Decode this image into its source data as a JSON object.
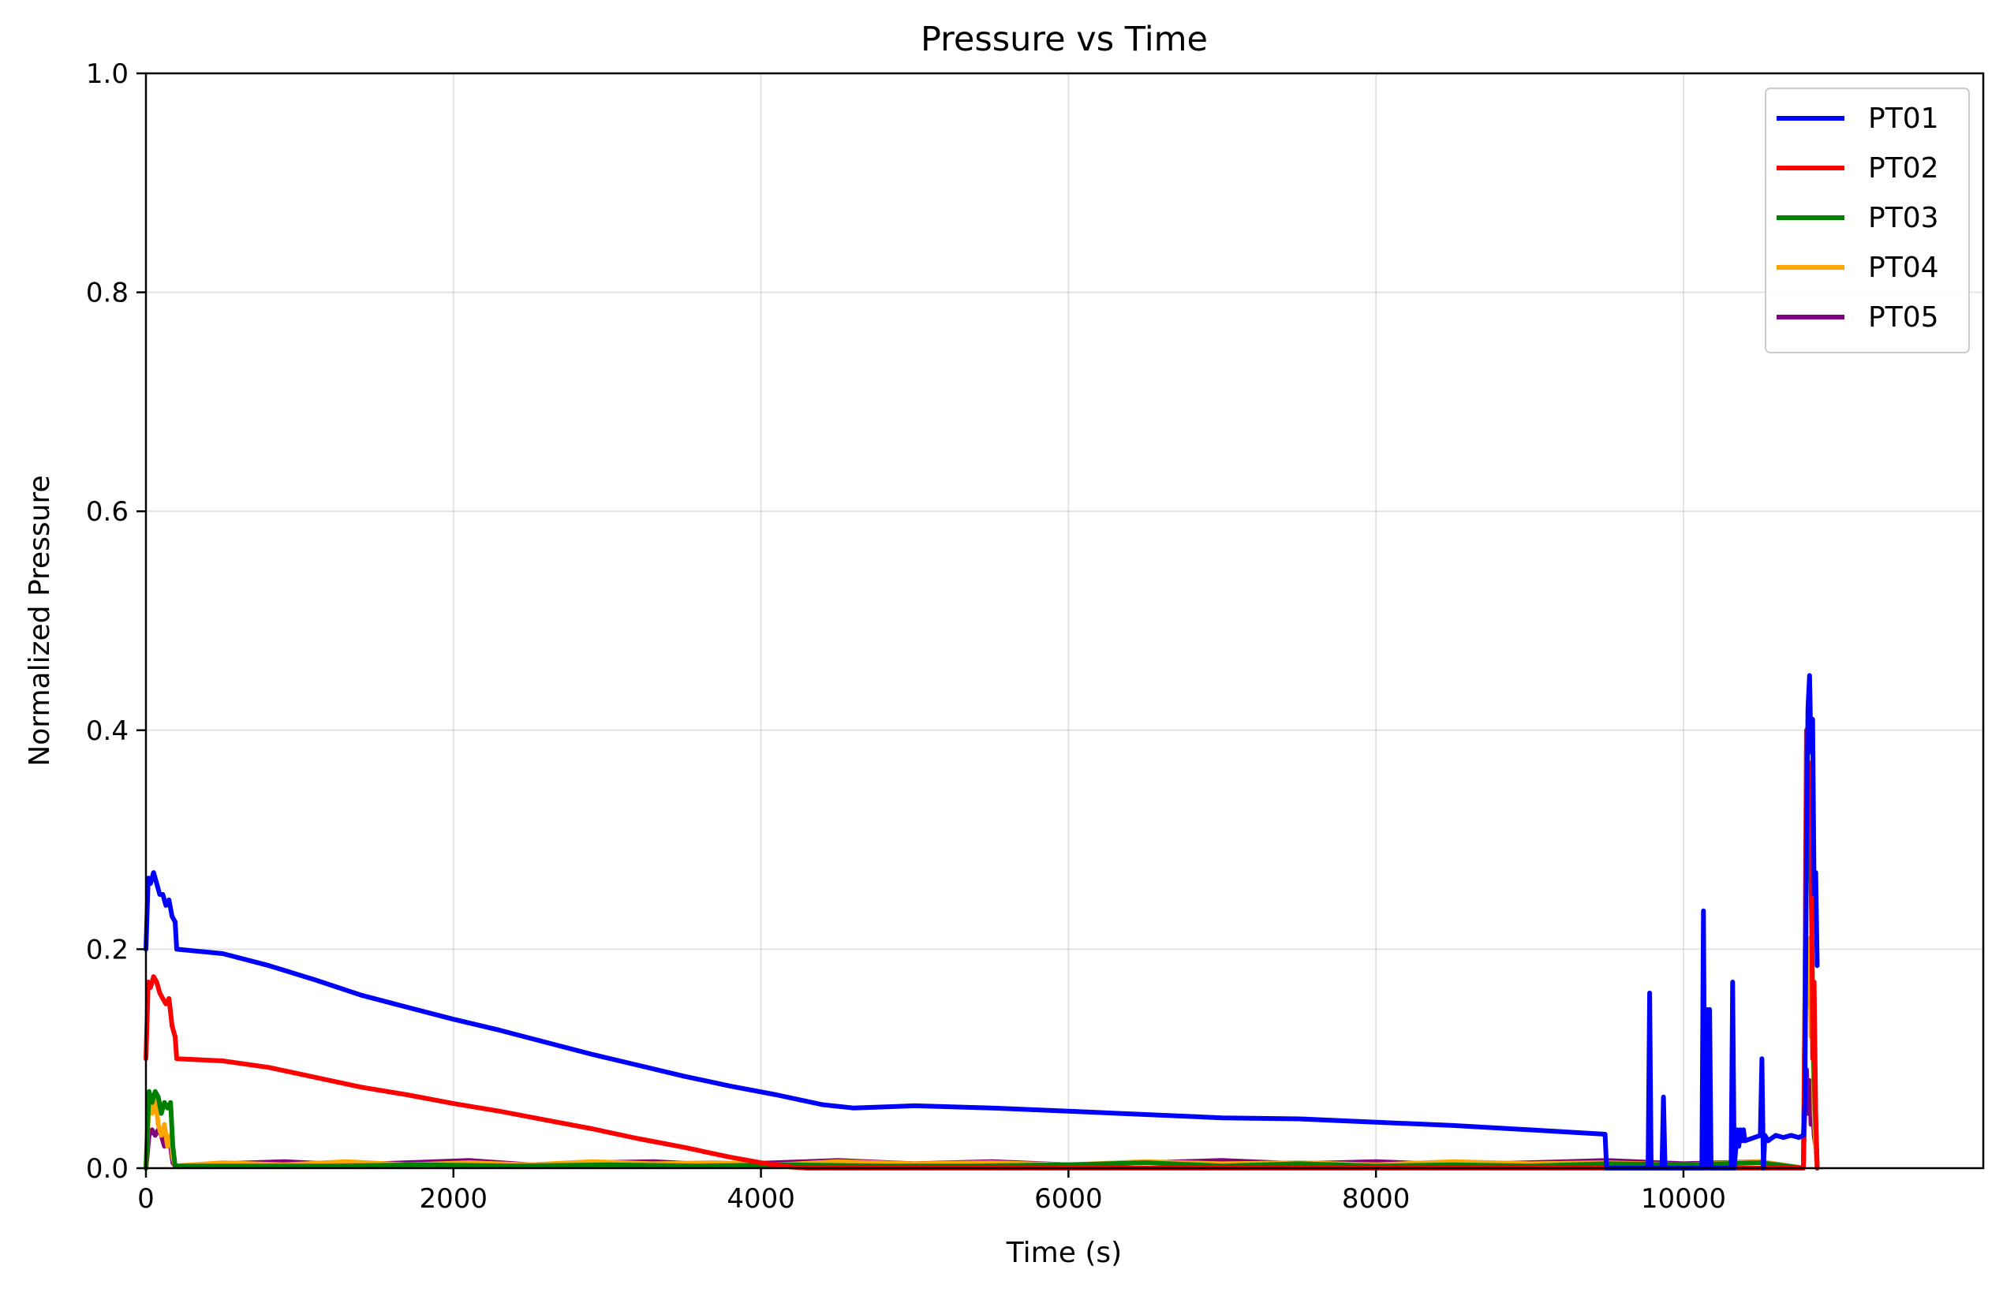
{
  "chart_data": {
    "type": "line",
    "title": "Pressure vs Time",
    "xlabel": "Time (s)",
    "ylabel": "Normalized Pressure",
    "xlim": [
      0,
      11950
    ],
    "ylim": [
      0,
      1.0
    ],
    "xticks": [
      0,
      2000,
      4000,
      6000,
      8000,
      10000
    ],
    "yticks": [
      0.0,
      0.2,
      0.4,
      0.6,
      0.8,
      1.0
    ],
    "xtick_labels": [
      "0",
      "2000",
      "4000",
      "6000",
      "8000",
      "10000"
    ],
    "ytick_labels": [
      "0.0",
      "0.2",
      "0.4",
      "0.6",
      "0.8",
      "1.0"
    ],
    "grid": true,
    "legend_position": "top-right",
    "series": [
      {
        "name": "PT01",
        "color": "#0000ff",
        "x": [
          0,
          15,
          30,
          50,
          70,
          90,
          110,
          130,
          150,
          170,
          190,
          200,
          500,
          800,
          1100,
          1400,
          1700,
          2000,
          2300,
          2600,
          2900,
          3200,
          3500,
          3800,
          4100,
          4400,
          4600,
          5000,
          5500,
          6000,
          6500,
          7000,
          7500,
          8000,
          8500,
          9000,
          9490,
          9500,
          9770,
          9780,
          9790,
          9800,
          9860,
          9870,
          9880,
          10120,
          10130,
          10140,
          10150,
          10160,
          10170,
          10180,
          10190,
          10200,
          10310,
          10320,
          10330,
          10350,
          10360,
          10370,
          10380,
          10390,
          10400,
          10500,
          10510,
          10520,
          10530,
          10550,
          10600,
          10650,
          10700,
          10750,
          10780,
          10790,
          10800,
          10810,
          10820,
          10830,
          10840,
          10850,
          10860,
          10870
        ],
        "y": [
          0.2,
          0.265,
          0.26,
          0.27,
          0.26,
          0.25,
          0.25,
          0.24,
          0.245,
          0.23,
          0.225,
          0.2,
          0.196,
          0.185,
          0.172,
          0.158,
          0.147,
          0.136,
          0.126,
          0.115,
          0.104,
          0.094,
          0.084,
          0.075,
          0.067,
          0.058,
          0.055,
          0.057,
          0.055,
          0.052,
          0.049,
          0.046,
          0.045,
          0.042,
          0.039,
          0.035,
          0.031,
          0.0,
          0.0,
          0.16,
          0.0,
          0.0,
          0.0,
          0.065,
          0.0,
          0.0,
          0.235,
          0.0,
          0.145,
          0.0,
          0.145,
          0.0,
          0.0,
          0.0,
          0.0,
          0.17,
          0.0,
          0.035,
          0.02,
          0.035,
          0.025,
          0.035,
          0.025,
          0.03,
          0.1,
          0.0,
          0.03,
          0.025,
          0.03,
          0.028,
          0.03,
          0.028,
          0.03,
          0.06,
          0.3,
          0.42,
          0.45,
          0.38,
          0.41,
          0.25,
          0.27,
          0.185
        ]
      },
      {
        "name": "PT02",
        "color": "#ff0000",
        "x": [
          0,
          15,
          30,
          50,
          70,
          90,
          110,
          130,
          150,
          170,
          190,
          200,
          500,
          800,
          1100,
          1400,
          1700,
          2000,
          2300,
          2600,
          2900,
          3200,
          3500,
          3800,
          4000,
          4200,
          4300,
          10780,
          10790,
          10800,
          10810,
          10820,
          10830,
          10840,
          10850,
          10860,
          10870
        ],
        "y": [
          0.1,
          0.17,
          0.165,
          0.175,
          0.17,
          0.16,
          0.155,
          0.15,
          0.155,
          0.13,
          0.12,
          0.1,
          0.098,
          0.092,
          0.083,
          0.074,
          0.067,
          0.059,
          0.052,
          0.044,
          0.036,
          0.027,
          0.019,
          0.01,
          0.005,
          0.001,
          0.0,
          0.0,
          0.15,
          0.4,
          0.36,
          0.33,
          0.37,
          0.1,
          0.17,
          0.05,
          0.0
        ]
      },
      {
        "name": "PT03",
        "color": "#008000",
        "x": [
          0,
          20,
          40,
          60,
          80,
          100,
          120,
          140,
          160,
          175,
          190,
          600,
          1200,
          1800,
          2400,
          3000,
          3600,
          4200,
          4800,
          5400,
          6000,
          6500,
          7000,
          7500,
          8000,
          8500,
          9000,
          9500,
          10000,
          10500,
          10780,
          10790,
          10800,
          10810,
          10820,
          10830,
          10840,
          10850,
          10860,
          10870
        ],
        "y": [
          0.0,
          0.07,
          0.06,
          0.07,
          0.065,
          0.05,
          0.06,
          0.055,
          0.06,
          0.02,
          0.002,
          0.002,
          0.002,
          0.003,
          0.002,
          0.003,
          0.002,
          0.003,
          0.002,
          0.002,
          0.003,
          0.005,
          0.002,
          0.004,
          0.002,
          0.003,
          0.002,
          0.004,
          0.003,
          0.005,
          0.0,
          0.15,
          0.36,
          0.3,
          0.32,
          0.26,
          0.16,
          0.08,
          0.04,
          0.0
        ]
      },
      {
        "name": "PT04",
        "color": "#ffa500",
        "x": [
          0,
          20,
          40,
          60,
          80,
          100,
          120,
          140,
          160,
          175,
          190,
          500,
          900,
          1300,
          1700,
          2100,
          2500,
          2900,
          3300,
          3700,
          4100,
          4500,
          5000,
          5500,
          6000,
          6500,
          7000,
          7500,
          8000,
          8500,
          9000,
          9500,
          10000,
          10500,
          10780,
          10790,
          10800,
          10810,
          10820,
          10830,
          10840,
          10850,
          10860,
          10870
        ],
        "y": [
          0.0,
          0.06,
          0.05,
          0.065,
          0.04,
          0.03,
          0.04,
          0.02,
          0.03,
          0.01,
          0.002,
          0.005,
          0.003,
          0.006,
          0.003,
          0.005,
          0.003,
          0.006,
          0.004,
          0.005,
          0.003,
          0.006,
          0.004,
          0.005,
          0.003,
          0.006,
          0.004,
          0.005,
          0.003,
          0.006,
          0.004,
          0.005,
          0.003,
          0.006,
          0.0,
          0.1,
          0.2,
          0.15,
          0.21,
          0.12,
          0.13,
          0.05,
          0.02,
          0.0
        ]
      },
      {
        "name": "PT05",
        "color": "#800080",
        "x": [
          0,
          20,
          40,
          60,
          80,
          100,
          120,
          140,
          160,
          175,
          190,
          500,
          900,
          1300,
          1700,
          2100,
          2500,
          2900,
          3300,
          3700,
          4100,
          4500,
          5000,
          5500,
          6000,
          6500,
          7000,
          7500,
          8000,
          8500,
          9000,
          9500,
          10000,
          10500,
          10780,
          10790,
          10800,
          10810,
          10820,
          10830,
          10840,
          10850,
          10860,
          10870
        ],
        "y": [
          0.0,
          0.03,
          0.035,
          0.03,
          0.035,
          0.03,
          0.02,
          0.025,
          0.02,
          0.005,
          0.002,
          0.004,
          0.006,
          0.003,
          0.005,
          0.007,
          0.003,
          0.005,
          0.006,
          0.003,
          0.005,
          0.007,
          0.004,
          0.006,
          0.003,
          0.005,
          0.007,
          0.004,
          0.006,
          0.003,
          0.005,
          0.007,
          0.004,
          0.006,
          0.0,
          0.06,
          0.09,
          0.05,
          0.08,
          0.04,
          0.06,
          0.03,
          0.02,
          0.0
        ]
      }
    ]
  }
}
